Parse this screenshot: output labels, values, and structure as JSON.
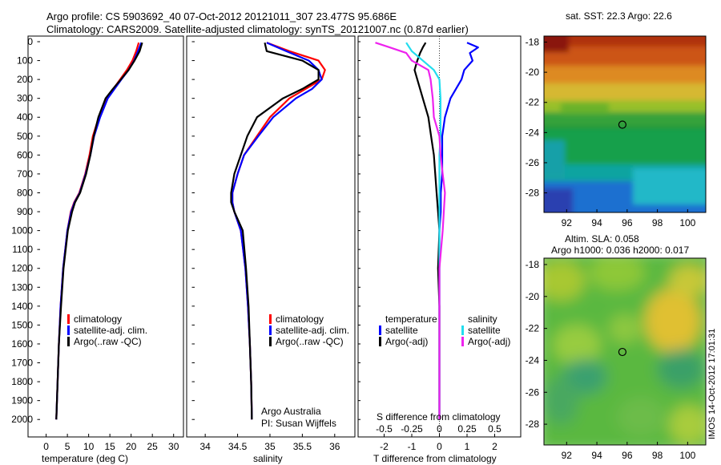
{
  "header": {
    "line1": "Argo profile: CS 5903692_40 07-Oct-2012 20121011_307 23.477S 95.686E",
    "line2": "Climatology: CARS2009. Satellite-adjusted climatology: synTS_20121007.nc (0.87d earlier)"
  },
  "side_label": "IMOS 14-Oct-2012 17:01:31",
  "colors": {
    "climatology": "#ff0000",
    "satellite": "#0000ff",
    "argo": "#000000",
    "sat_salinity": "#22ddee",
    "argo_salinity": "#ee22ee"
  },
  "chart_data": [
    {
      "type": "line",
      "panel": "temperature",
      "xlabel": "temperature (deg C)",
      "ylabel": "",
      "xlim": [
        -2,
        31
      ],
      "ylim": [
        2050,
        0
      ],
      "xticks": [
        "0",
        "5",
        "10",
        "15",
        "20",
        "25",
        "30"
      ],
      "yticks": [
        "0",
        "100",
        "200",
        "300",
        "400",
        "500",
        "600",
        "700",
        "800",
        "900",
        "1000",
        "1100",
        "1200",
        "1300",
        "1400",
        "1500",
        "1600",
        "1700",
        "1800",
        "1900",
        "2000"
      ],
      "legend": [
        "climatology",
        "satellite-adj. clim.",
        "Argo(..raw -QC)"
      ],
      "series": [
        {
          "name": "climatology",
          "depth": [
            5,
            50,
            100,
            150,
            200,
            250,
            300,
            400,
            500,
            600,
            700,
            800,
            850,
            900,
            1000,
            1200,
            1400,
            1600,
            1800,
            2000
          ],
          "values": [
            21.8,
            21.2,
            20.3,
            19.0,
            17.4,
            15.8,
            14.3,
            12.4,
            11.0,
            10.2,
            9.2,
            7.8,
            6.6,
            5.8,
            5.0,
            4.0,
            3.4,
            3.0,
            2.7,
            2.4
          ]
        },
        {
          "name": "satellite-adj. clim.",
          "depth": [
            5,
            50,
            100,
            150,
            200,
            250,
            300,
            400,
            500,
            600,
            700,
            800,
            850,
            900,
            1000,
            1200,
            1400,
            1600,
            1800,
            2000
          ],
          "values": [
            22.4,
            21.6,
            20.7,
            19.4,
            17.7,
            16.1,
            14.5,
            12.7,
            11.3,
            10.4,
            9.3,
            7.9,
            6.7,
            5.9,
            5.0,
            4.0,
            3.4,
            3.0,
            2.7,
            2.4
          ]
        },
        {
          "name": "Argo(..raw -QC)",
          "depth": [
            5,
            50,
            100,
            150,
            200,
            250,
            300,
            400,
            500,
            600,
            700,
            800,
            850,
            900,
            1000,
            1200,
            1400,
            1600,
            1800,
            2000
          ],
          "values": [
            22.6,
            22.0,
            20.8,
            19.4,
            17.6,
            15.7,
            14.0,
            12.3,
            11.2,
            10.4,
            9.4,
            8.0,
            6.8,
            6.1,
            5.1,
            4.1,
            3.5,
            3.0,
            2.7,
            2.4
          ]
        }
      ]
    },
    {
      "type": "line",
      "panel": "salinity",
      "xlabel": "salinity",
      "xlim": [
        33.8,
        36.25
      ],
      "ylim": [
        2050,
        0
      ],
      "xticks": [
        "34",
        "34.5",
        "35",
        "35.5",
        "36"
      ],
      "legend": [
        "climatology",
        "satellite-adj. clim.",
        "Argo(..raw -QC)"
      ],
      "annotation": [
        "Argo Australia",
        "PI: Susan Wijffels"
      ],
      "series": [
        {
          "name": "climatology",
          "depth": [
            5,
            50,
            100,
            150,
            200,
            250,
            300,
            400,
            500,
            600,
            700,
            800,
            850,
            900,
            1000,
            1200,
            1400,
            1600,
            1800,
            2000
          ],
          "values": [
            34.95,
            35.3,
            35.75,
            35.85,
            35.8,
            35.55,
            35.3,
            35.0,
            34.8,
            34.6,
            34.5,
            34.42,
            34.42,
            34.45,
            34.55,
            34.62,
            34.66,
            34.69,
            34.71,
            34.72
          ]
        },
        {
          "name": "satellite-adj. clim.",
          "depth": [
            5,
            50,
            100,
            150,
            200,
            250,
            300,
            400,
            500,
            600,
            700,
            800,
            850,
            900,
            1000,
            1200,
            1400,
            1600,
            1800,
            2000
          ],
          "values": [
            34.95,
            35.25,
            35.6,
            35.75,
            35.8,
            35.65,
            35.4,
            35.05,
            34.82,
            34.6,
            34.5,
            34.42,
            34.42,
            34.45,
            34.55,
            34.62,
            34.66,
            34.69,
            34.71,
            34.72
          ]
        },
        {
          "name": "Argo(..raw -QC)",
          "depth": [
            5,
            50,
            100,
            150,
            200,
            250,
            300,
            400,
            500,
            600,
            700,
            800,
            850,
            900,
            1000,
            1200,
            1400,
            1600,
            1800,
            2000
          ],
          "values": [
            34.92,
            34.95,
            35.5,
            35.75,
            35.75,
            35.5,
            35.2,
            34.8,
            34.65,
            34.55,
            34.45,
            34.4,
            34.4,
            34.45,
            34.58,
            34.63,
            34.67,
            34.69,
            34.71,
            34.72
          ]
        }
      ]
    },
    {
      "type": "line",
      "panel": "differences",
      "xlabel": "T difference from climatology",
      "xlabel_top": "S difference from climatology",
      "xlim": [
        -2.9,
        2.9
      ],
      "ylim": [
        2050,
        0
      ],
      "xticks": [
        "-2",
        "-1",
        "0",
        "1",
        "2"
      ],
      "xticks_top": [
        "-0.5",
        "-0.25",
        "0",
        "0.25",
        "0.5"
      ],
      "legend": {
        "temperature": [
          "satellite",
          "Argo(-adj)"
        ],
        "salinity": [
          "satellite",
          "Argo(-adj)"
        ],
        "headers": [
          "temperature",
          "salinity"
        ]
      },
      "series": [
        {
          "name": "temperature satellite",
          "depth": [
            5,
            30,
            60,
            100,
            150,
            200,
            300,
            400,
            500,
            600,
            700,
            800,
            900,
            1000,
            1200,
            1400,
            1600,
            1800,
            2000
          ],
          "values": [
            1.0,
            1.4,
            1.1,
            1.2,
            0.9,
            0.8,
            0.4,
            0.2,
            0.1,
            0.1,
            0.1,
            0.05,
            0.05,
            0.0,
            0.0,
            0.0,
            0.0,
            0.0,
            0.0
          ]
        },
        {
          "name": "temperature Argo(-adj)",
          "depth": [
            5,
            30,
            60,
            100,
            150,
            200,
            300,
            400,
            500,
            600,
            700,
            800,
            900,
            1000,
            1200,
            1400,
            1600,
            1800,
            2000
          ],
          "values": [
            -0.5,
            -0.6,
            -0.7,
            -0.8,
            -0.9,
            -0.8,
            -0.6,
            -0.4,
            -0.3,
            -0.2,
            -0.15,
            -0.1,
            -0.05,
            0.0,
            -0.05,
            0.0,
            0.0,
            0.0,
            0.0
          ]
        },
        {
          "name": "salinity satellite",
          "depth": [
            5,
            50,
            100,
            150,
            200,
            300,
            400,
            500,
            600,
            700,
            800,
            900,
            1000,
            1200,
            1400,
            1600,
            1800,
            2000
          ],
          "values": [
            -0.3,
            -0.25,
            -0.15,
            -0.05,
            0.0,
            0.01,
            0.01,
            0.01,
            0.0,
            0.0,
            0.0,
            0.0,
            0.0,
            0.0,
            0.0,
            0.0,
            0.0,
            0.0
          ]
        },
        {
          "name": "salinity Argo(-adj)",
          "depth": [
            5,
            30,
            60,
            100,
            150,
            200,
            300,
            400,
            500,
            600,
            700,
            800,
            900,
            1000,
            1200,
            1400,
            1600,
            1800,
            2000
          ],
          "values": [
            -0.58,
            -0.45,
            -0.3,
            -0.25,
            -0.1,
            -0.08,
            -0.06,
            -0.05,
            0.0,
            0.01,
            0.03,
            0.05,
            0.04,
            0.03,
            0.0,
            0.0,
            0.0,
            0.0,
            0.0
          ]
        }
      ]
    },
    {
      "type": "heatmap",
      "panel": "sst-map",
      "title": "sat. SST: 22.3 Argo: 22.6",
      "xticks": [
        "92",
        "94",
        "96",
        "98",
        "100"
      ],
      "yticks": [
        "-18",
        "-20",
        "-22",
        "-24",
        "-26",
        "-28"
      ],
      "xlim": [
        90.5,
        101.2
      ],
      "ylim": [
        -29.3,
        -17.6
      ],
      "marker": {
        "lon": 95.686,
        "lat": -23.477
      }
    },
    {
      "type": "heatmap",
      "panel": "sla-map",
      "title": "Altim. SLA: 0.058",
      "subtitle": "Argo h1000: 0.036 h2000: 0.017",
      "xticks": [
        "92",
        "94",
        "96",
        "98",
        "100"
      ],
      "yticks": [
        "-18",
        "-20",
        "-22",
        "-24",
        "-26",
        "-28"
      ],
      "xlim": [
        90.5,
        101.2
      ],
      "ylim": [
        -29.3,
        -17.6
      ],
      "marker": {
        "lon": 95.686,
        "lat": -23.477
      }
    }
  ]
}
